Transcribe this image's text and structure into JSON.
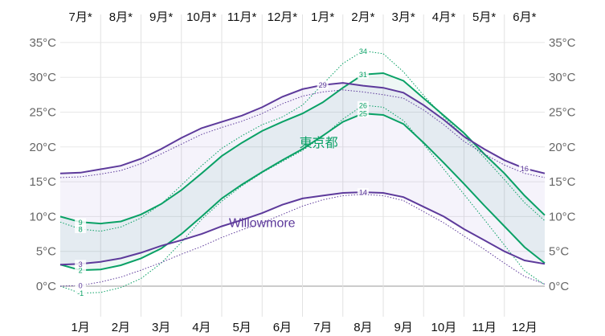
{
  "chart_data": {
    "type": "line",
    "title": "",
    "ylabel": "",
    "xlabel": "",
    "ylim": [
      -4.5,
      36
    ],
    "y_ticks": [
      "0°C",
      "5°C",
      "10°C",
      "15°C",
      "20°C",
      "25°C",
      "30°C",
      "35°C"
    ],
    "y_tick_values": [
      0,
      5,
      10,
      15,
      20,
      25,
      30,
      35
    ],
    "x_ticks_bottom": [
      "1月",
      "2月",
      "3月",
      "4月",
      "5月",
      "6月",
      "7月",
      "8月",
      "9月",
      "10月",
      "11月",
      "12月"
    ],
    "x_ticks_top": [
      "7月*",
      "8月*",
      "9月*",
      "10月*",
      "11月*",
      "12月*",
      "1月*",
      "2月*",
      "3月*",
      "4月*",
      "5月*",
      "6月*"
    ],
    "x": [
      0,
      0.5,
      1,
      1.5,
      2,
      2.5,
      3,
      3.5,
      4,
      4.5,
      5,
      5.5,
      6,
      6.5,
      7,
      7.5,
      8,
      8.5,
      9,
      9.5,
      10,
      10.5,
      11,
      11.5,
      12
    ],
    "series": [
      {
        "name": "東京都",
        "color": "#0aa166",
        "style": "solid",
        "role": "high",
        "values": [
          10,
          9.2,
          9,
          9.3,
          10.3,
          11.8,
          13.8,
          16.2,
          18.7,
          20.6,
          22.3,
          23.6,
          24.8,
          26.4,
          28.5,
          30.4,
          30.6,
          29.5,
          27,
          24.5,
          22,
          19,
          16.2,
          13,
          10.2
        ],
        "labels": [
          {
            "i": 1,
            "text": "9"
          },
          {
            "i": 15,
            "text": "31"
          }
        ]
      },
      {
        "name": "東京都",
        "color": "#0aa166",
        "style": "solid",
        "role": "low",
        "values": [
          3.1,
          2.3,
          2.4,
          3,
          4,
          5.4,
          7.5,
          10,
          12.6,
          14.6,
          16.4,
          18.1,
          19.7,
          21.6,
          23.6,
          24.8,
          24.6,
          23.3,
          20.6,
          17.7,
          14.7,
          11.6,
          8.6,
          5.6,
          3.3
        ],
        "labels": [
          {
            "i": 1,
            "text": "2"
          },
          {
            "i": 15,
            "text": "25"
          }
        ]
      },
      {
        "name": "東京都 90%",
        "color": "#0aa166",
        "style": "dotted",
        "role": "high",
        "values": [
          9.2,
          8.2,
          7.9,
          8.5,
          9.8,
          11.8,
          14.5,
          17.3,
          19.8,
          21.6,
          23.2,
          24.3,
          26,
          29,
          32,
          33.8,
          33.4,
          30.8,
          27.4,
          24.3,
          21.5,
          18.5,
          15.3,
          12,
          9.4
        ],
        "labels": [
          {
            "i": 15,
            "text": "34"
          },
          {
            "i": 1,
            "text": "8"
          }
        ]
      },
      {
        "name": "東京都 10%",
        "color": "#0aa166",
        "style": "dotted",
        "role": "low",
        "values": [
          0,
          -1,
          -0.9,
          -0.2,
          1.1,
          3.3,
          6.3,
          9.6,
          12.2,
          14.4,
          16.3,
          17.9,
          19.5,
          21.5,
          24,
          26,
          25.7,
          23.8,
          20.4,
          16.8,
          13.2,
          9.6,
          5.9,
          2.2,
          0.2
        ],
        "labels": [
          {
            "i": 1,
            "text": "-1"
          },
          {
            "i": 15,
            "text": "26"
          }
        ]
      },
      {
        "name": "Willowmore",
        "color": "#5d3a9b",
        "style": "solid",
        "role": "high",
        "values": [
          16.2,
          16.3,
          16.8,
          17.3,
          18.3,
          19.7,
          21.3,
          22.7,
          23.6,
          24.5,
          25.7,
          27.2,
          28.3,
          28.9,
          29.2,
          28.8,
          28.5,
          27.8,
          26,
          23.9,
          21.5,
          19.7,
          18.1,
          16.9,
          16.2
        ],
        "labels": [
          {
            "i": 13,
            "text": "29"
          },
          {
            "i": 23,
            "text": "16"
          }
        ]
      },
      {
        "name": "Willowmore",
        "color": "#5d3a9b",
        "style": "solid",
        "role": "low",
        "values": [
          3.1,
          3.2,
          3.5,
          4,
          4.8,
          5.8,
          6.6,
          7.5,
          8.6,
          9.5,
          10.5,
          11.7,
          12.6,
          13,
          13.4,
          13.5,
          13.4,
          12.8,
          11.4,
          10,
          8.2,
          6.6,
          5,
          3.7,
          3.2
        ],
        "labels": [
          {
            "i": 1,
            "text": "3"
          },
          {
            "i": 15,
            "text": "14"
          }
        ]
      },
      {
        "name": "Willowmore 90%",
        "color": "#5d3a9b",
        "style": "dotted",
        "role": "high",
        "values": [
          15.6,
          15.7,
          16.1,
          16.6,
          17.6,
          19,
          20.4,
          21.8,
          22.8,
          23.7,
          24.8,
          26.2,
          27.3,
          27.9,
          28.2,
          27.9,
          27.5,
          27,
          25.3,
          23.2,
          20.8,
          19,
          17.4,
          16.2,
          15.6
        ],
        "labels": []
      },
      {
        "name": "Willowmore 10%",
        "color": "#5d3a9b",
        "style": "dotted",
        "role": "low",
        "values": [
          0,
          0.1,
          0.6,
          1.3,
          2.3,
          3.4,
          4.6,
          5.7,
          7,
          8.1,
          9.1,
          10.3,
          11.5,
          12.4,
          13,
          13.2,
          13,
          12.3,
          10.7,
          9.1,
          7.2,
          5.3,
          3.3,
          1.4,
          0.3
        ],
        "labels": [
          {
            "i": 1,
            "text": "0"
          }
        ]
      }
    ],
    "annotations": [
      {
        "text": "東京都",
        "color": "#0aa166",
        "x": 6.4,
        "y": 20
      },
      {
        "text": "Willowmore",
        "color": "#5d3a9b",
        "x": 5,
        "y": 8.5
      }
    ],
    "grid": true,
    "legend": "none"
  }
}
